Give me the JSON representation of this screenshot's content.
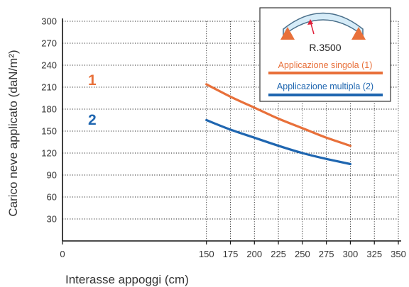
{
  "chart_data": {
    "type": "line",
    "xlabel": "Interasse appoggi (cm)",
    "ylabel": "Carico neve applicato  (daN/m²)",
    "xlim": [
      0,
      350
    ],
    "ylim": [
      0,
      300
    ],
    "x_ticks": [
      0,
      150,
      175,
      200,
      225,
      250,
      275,
      300,
      325,
      350
    ],
    "y_ticks": [
      30,
      60,
      90,
      120,
      150,
      180,
      210,
      240,
      270,
      300
    ],
    "grid": true,
    "legend_position": "top-right",
    "legend_radius": "R.3500",
    "series": [
      {
        "name": "Applicazione singola (1)",
        "marker_label": "1",
        "color": "#e8703a",
        "x": [
          150,
          175,
          200,
          225,
          250,
          275,
          300
        ],
        "y": [
          214,
          197,
          182,
          167,
          154,
          141,
          130
        ]
      },
      {
        "name": "Applicazione multipla (2)",
        "marker_label": "2",
        "color": "#1f66b0",
        "x": [
          150,
          175,
          200,
          225,
          250,
          275,
          300
        ],
        "y": [
          165,
          152,
          141,
          130,
          120,
          112,
          105
        ]
      }
    ]
  },
  "colors": {
    "grid": "#222222",
    "axis": "#111111",
    "arch_fill": "#d6ecf8",
    "arch_stroke": "#4a6f8a",
    "support": "#e8703a",
    "radius_arrow": "#e0203a"
  }
}
